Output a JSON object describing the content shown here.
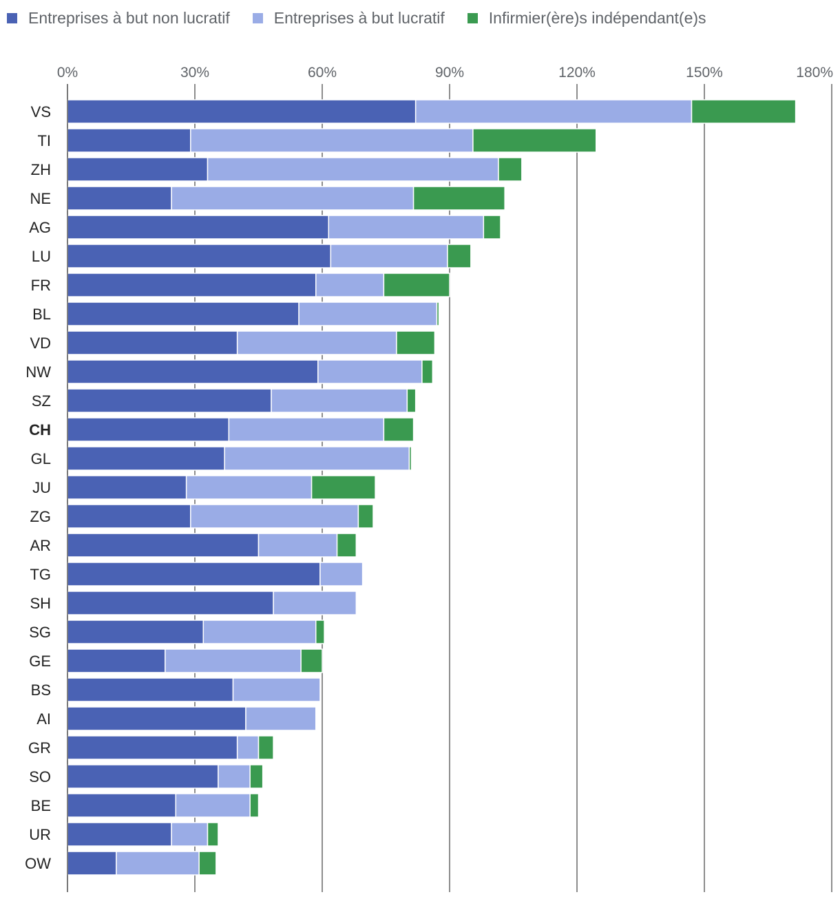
{
  "colors": {
    "non_profit": "#4a62b4",
    "for_profit": "#9aace6",
    "independent": "#3a9a50",
    "grid": "#666666",
    "text": "#5f6368"
  },
  "chart_data": {
    "type": "bar",
    "orientation": "horizontal",
    "stacked": true,
    "title": "",
    "xlabel": "",
    "ylabel": "",
    "xlim": [
      0,
      180
    ],
    "x_ticks": [
      "0%",
      "30%",
      "60%",
      "90%",
      "120%",
      "150%",
      "180%"
    ],
    "x_tick_values": [
      0,
      30,
      60,
      90,
      120,
      150,
      180
    ],
    "legend_position": "top-left",
    "highlight_category": "CH",
    "categories": [
      "VS",
      "TI",
      "ZH",
      "NE",
      "AG",
      "LU",
      "FR",
      "BL",
      "VD",
      "NW",
      "SZ",
      "CH",
      "GL",
      "JU",
      "ZG",
      "AR",
      "TG",
      "SH",
      "SG",
      "GE",
      "BS",
      "AI",
      "GR",
      "SO",
      "BE",
      "UR",
      "OW"
    ],
    "series": [
      {
        "name": "Entreprises à but non lucratif",
        "color_key": "non_profit",
        "values": [
          82,
          29,
          33,
          24.5,
          61.5,
          62,
          58.5,
          54.5,
          40,
          59,
          48,
          38,
          37,
          28,
          29,
          45,
          59.5,
          48.5,
          32,
          23,
          39,
          42,
          40,
          35.5,
          25.5,
          24.5,
          11.5
        ]
      },
      {
        "name": "Entreprises à but lucratif",
        "color_key": "for_profit",
        "values": [
          65,
          66.5,
          68.5,
          57,
          36.5,
          27.5,
          16,
          32.5,
          37.5,
          24.5,
          32,
          36.5,
          43.5,
          29.5,
          39.5,
          18.5,
          10,
          19.5,
          26.5,
          32,
          20.5,
          16.5,
          5,
          7.5,
          17.5,
          8.5,
          19.5
        ]
      },
      {
        "name": "Infirmier(ère)s indépendant(e)s",
        "color_key": "independent",
        "values": [
          24.5,
          29,
          5.5,
          21.5,
          4,
          5.5,
          15.5,
          0.5,
          9,
          2.5,
          2,
          7,
          0.5,
          15,
          3.5,
          4.5,
          0,
          0,
          2,
          5,
          0,
          0,
          3.5,
          3,
          2,
          2.5,
          4
        ]
      }
    ]
  }
}
